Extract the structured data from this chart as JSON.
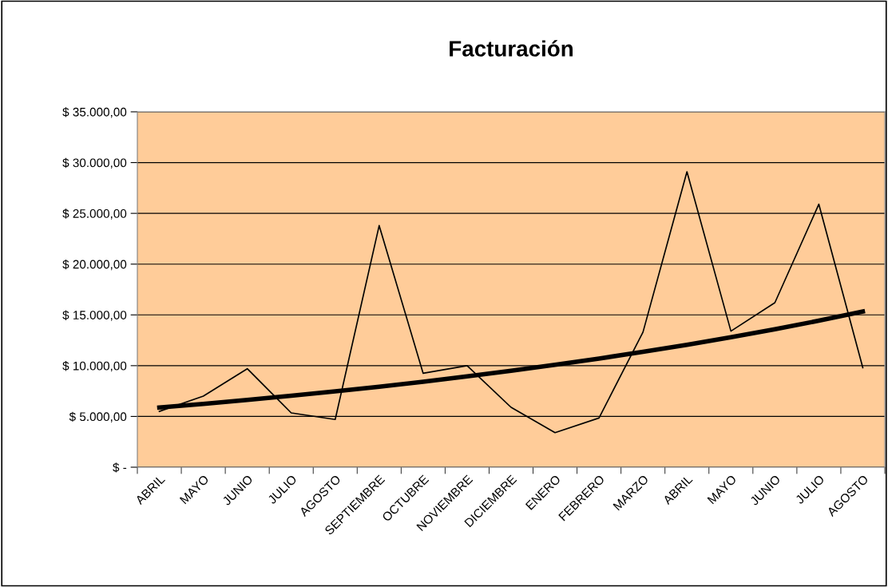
{
  "chart_data": {
    "type": "line",
    "title": "Facturación",
    "categories": [
      "ABRIL",
      "MAYO",
      "JUNIO",
      "JULIO",
      "AGOSTO",
      "SEPTIEMBRE",
      "OCTUBRE",
      "NOVIEMBRE",
      "DICIEMBRE",
      "ENERO",
      "FEBRERO",
      "MARZO",
      "ABRIL",
      "MAYO",
      "JUNIO",
      "JULIO",
      "AGOSTO"
    ],
    "series": [
      {
        "color": "#000000",
        "values": [
          5500,
          7000,
          9700,
          5350,
          4700,
          23800,
          9250,
          10000,
          5900,
          3400,
          4850,
          13300,
          29100,
          13400,
          16200,
          25900,
          9800
        ]
      },
      {
        "type": "line",
        "color": "#000000",
        "values": [
          5880,
          6240,
          6630,
          7040,
          7470,
          7930,
          8420,
          8940,
          9490,
          10080,
          10700,
          11360,
          12060,
          12800,
          13590,
          14430,
          15330
        ],
        "line_style": "solid"
      }
    ],
    "ylim": [
      0,
      35000
    ],
    "yticks": [
      {
        "value": 0,
        "label": "$ -"
      },
      {
        "value": 5000,
        "label": "$ 5.000,00"
      },
      {
        "value": 10000,
        "label": "$ 10.000,00"
      },
      {
        "value": 15000,
        "label": "$ 15.000,00"
      },
      {
        "value": 20000,
        "label": "$ 20.000,00"
      },
      {
        "value": 25000,
        "label": "$ 25.000,00"
      },
      {
        "value": 30000,
        "label": "$ 30.000,00"
      },
      {
        "value": 35000,
        "label": "$ 35.000,00"
      }
    ],
    "grid": "y",
    "legend": false,
    "marker": "none"
  }
}
